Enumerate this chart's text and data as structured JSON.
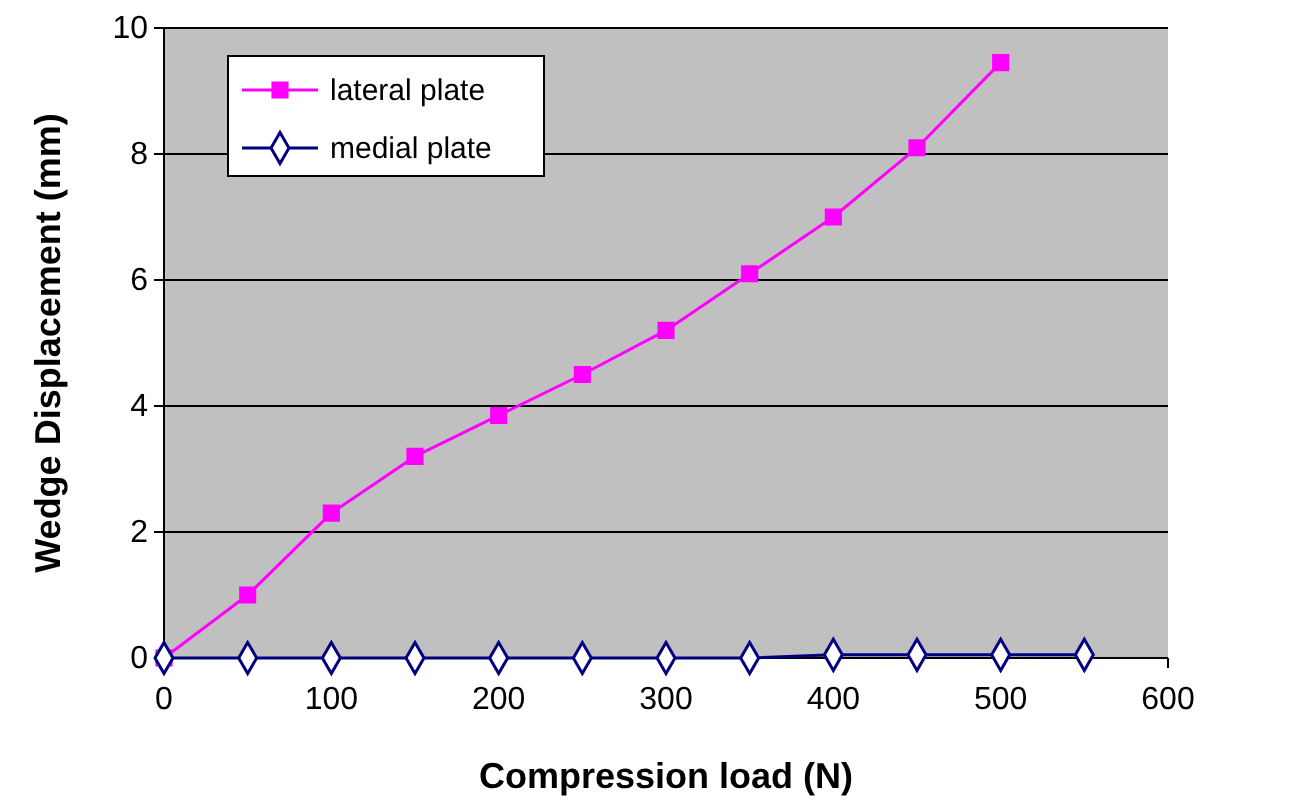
{
  "chart_data": {
    "type": "line",
    "xlabel": "Compression load (N)",
    "ylabel": "Wedge Displacement (mm)",
    "xlim": [
      0,
      600
    ],
    "xticks": [
      0,
      100,
      200,
      300,
      400,
      500,
      600
    ],
    "ylim": [
      0,
      10
    ],
    "yticks": [
      0,
      2,
      4,
      6,
      8,
      10
    ],
    "grid": "y",
    "legend": "top left",
    "series": [
      {
        "name": "lateral plate",
        "color": "#ff00ff",
        "marker": "square",
        "x": [
          0,
          50,
          100,
          150,
          200,
          250,
          300,
          350,
          400,
          450,
          500
        ],
        "values": [
          0,
          1.0,
          2.3,
          3.2,
          3.85,
          4.5,
          5.2,
          6.1,
          7.0,
          8.1,
          9.45
        ]
      },
      {
        "name": "medial plate",
        "color": "#000080",
        "marker": "diamond",
        "x": [
          0,
          50,
          100,
          150,
          200,
          250,
          300,
          350,
          400,
          450,
          500,
          550
        ],
        "values": [
          0,
          0,
          0,
          0,
          0,
          0,
          0,
          0,
          0.05,
          0.05,
          0.05,
          0.05
        ]
      }
    ]
  }
}
